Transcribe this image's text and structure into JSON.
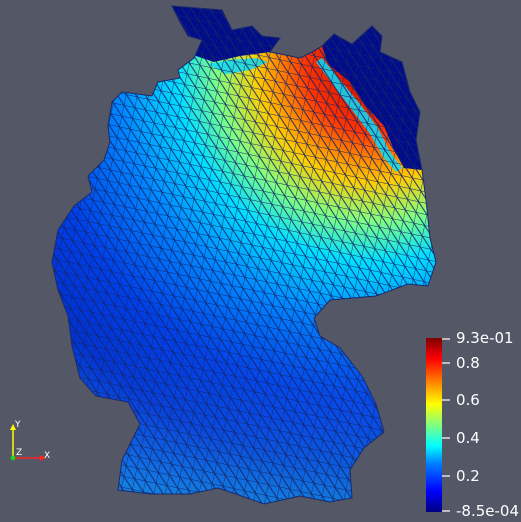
{
  "background": "#545766",
  "mesh": {
    "edge_color": "#1a2a6c"
  },
  "colorbar": {
    "max_label": "9.3e-01",
    "min_label": "-8.5e-04",
    "ticks": [
      "0.8",
      "0.6",
      "0.4",
      "0.2"
    ],
    "max_value": 0.93,
    "min_value": -0.00085,
    "colormap": [
      "#00007f",
      "#0000ff",
      "#0080ff",
      "#00ffff",
      "#80ff80",
      "#ffff00",
      "#ff8000",
      "#ff0000",
      "#7f0000"
    ]
  },
  "axes_widget": {
    "y": "Y",
    "z": "Z",
    "x": "X"
  }
}
